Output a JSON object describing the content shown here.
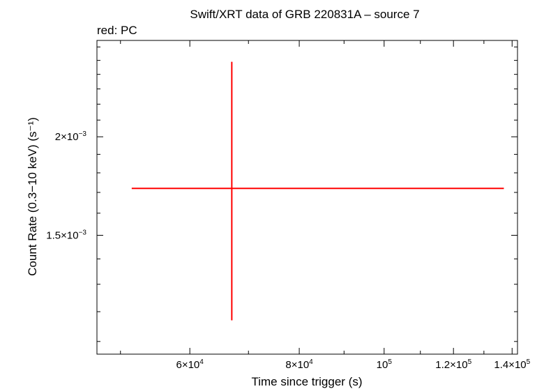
{
  "chart_data": {
    "type": "scatter",
    "title": "Swift/XRT data of GRB 220831A – source 7",
    "subtitle": "red: PC",
    "xlabel": "Time since trigger (s)",
    "ylabel": "Count Rate (0.3−10 keV) (s⁻¹)",
    "x_scale": "log",
    "y_scale": "log",
    "xlim": [
      47000,
      142000
    ],
    "ylim": [
      0.00106,
      0.00265
    ],
    "x_ticks": [
      {
        "value": 60000,
        "mantissa": "6×10",
        "exponent": "4"
      },
      {
        "value": 80000,
        "mantissa": "8×10",
        "exponent": "4"
      },
      {
        "value": 100000,
        "mantissa": "10",
        "exponent": "5"
      },
      {
        "value": 120000,
        "mantissa": "1.2×10",
        "exponent": "5"
      },
      {
        "value": 140000,
        "mantissa": "1.4×10",
        "exponent": "5"
      }
    ],
    "y_ticks": [
      {
        "value": 0.002,
        "mantissa": "2×10",
        "exponent": "−3"
      },
      {
        "value": 0.0015,
        "mantissa": "1.5×10",
        "exponent": "−3"
      }
    ],
    "series": [
      {
        "color": "#ff0000",
        "points": [
          {
            "x": 67000,
            "x_low": 51500,
            "x_high": 137000,
            "y": 0.00172,
            "y_low": 0.00117,
            "y_high": 0.00249
          }
        ]
      }
    ]
  }
}
